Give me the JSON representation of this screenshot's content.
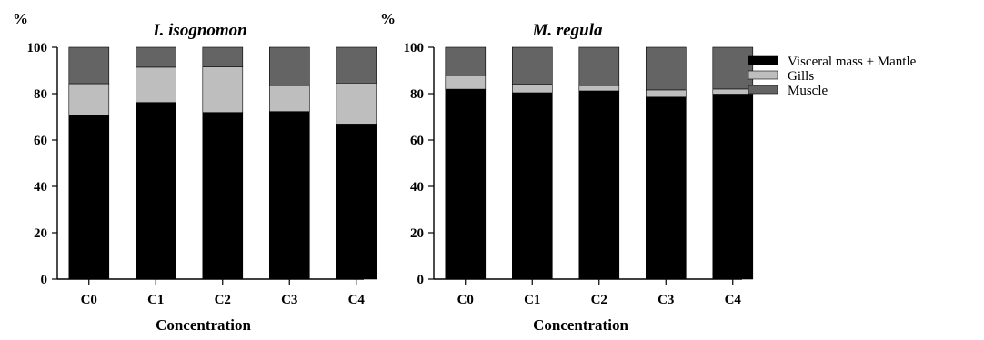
{
  "colors": {
    "Visceral mass + Mantle": "#000000",
    "Gills": "#bebebe",
    "Muscle": "#646464"
  },
  "legend": {
    "items": [
      "Visceral mass + Mantle",
      "Gills",
      "Muscle"
    ]
  },
  "chart_data": [
    {
      "type": "bar",
      "stacked": true,
      "title": "I. isognomon",
      "xlabel": "Concentration",
      "ylabel": "%",
      "ylim": [
        0,
        100
      ],
      "yticks": [
        0,
        20,
        40,
        60,
        80,
        100
      ],
      "categories": [
        "C0",
        "C1",
        "C2",
        "C3",
        "C4"
      ],
      "series": [
        {
          "name": "Visceral mass + Mantle",
          "values": [
            70.8,
            76.2,
            71.9,
            72.3,
            66.9
          ]
        },
        {
          "name": "Gills",
          "values": [
            13.5,
            15.2,
            19.6,
            11.2,
            17.7
          ]
        },
        {
          "name": "Muscle",
          "values": [
            15.7,
            8.6,
            8.5,
            16.5,
            15.4
          ]
        }
      ]
    },
    {
      "type": "bar",
      "stacked": true,
      "title": "M. regula",
      "xlabel": "Concentration",
      "ylabel": "%",
      "ylim": [
        0,
        100
      ],
      "yticks": [
        0,
        20,
        40,
        60,
        80,
        100
      ],
      "categories": [
        "C0",
        "C1",
        "C2",
        "C3",
        "C4"
      ],
      "series": [
        {
          "name": "Visceral mass + Mantle",
          "values": [
            81.9,
            80.4,
            81.2,
            78.5,
            79.8
          ]
        },
        {
          "name": "Gills",
          "values": [
            5.9,
            3.6,
            2.3,
            3.1,
            2.2
          ]
        },
        {
          "name": "Muscle",
          "values": [
            12.2,
            16.0,
            16.5,
            18.4,
            18.0
          ]
        }
      ]
    }
  ]
}
